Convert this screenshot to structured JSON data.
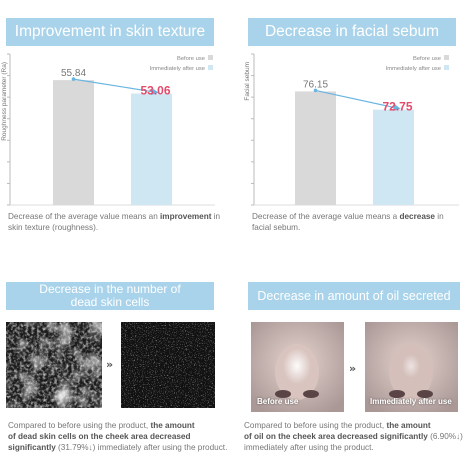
{
  "colors": {
    "banner": "#a9d3ea",
    "before_bar": "#d9d9d9",
    "after_bar": "#cfe6f3",
    "highlight": "#e24b6b",
    "arrow": "#69b5e2"
  },
  "chart_data": [
    {
      "type": "bar",
      "title": "Improvement in skin texture",
      "ylabel": "Roughness parameter (Ra)",
      "categories": [
        "Before use",
        "Immediately after use"
      ],
      "values": [
        55.84,
        53.06
      ],
      "value_labels": [
        "55.84",
        "53.06"
      ],
      "legend": [
        "Before use",
        "Immediately after use"
      ],
      "legend_position": "top-right",
      "ylim": [
        30,
        60
      ],
      "grid": false
    },
    {
      "type": "bar",
      "title": "Decrease in facial sebum",
      "ylabel": "Facial sebum",
      "categories": [
        "Before use",
        "Immediately after use"
      ],
      "values": [
        76.15,
        72.75
      ],
      "value_labels": [
        "76.15",
        "72.75"
      ],
      "legend": [
        "Before use",
        "Immediately after use"
      ],
      "legend_position": "top-right",
      "ylim": [
        55,
        82
      ],
      "grid": false
    }
  ],
  "captions": {
    "texture": {
      "pre": "Decrease of the average value means an ",
      "bold": "improvement",
      "post": " in skin texture (roughness)."
    },
    "sebum": {
      "pre": "Decrease of the average value means a ",
      "bold": "decrease",
      "post": " in facial sebum."
    }
  },
  "lower_left": {
    "title_line1": "Decrease in the number of",
    "title_line2": "dead skin cells",
    "arrows": "»",
    "caption_line1": "Compared to before using the product, ",
    "caption_bold1": "the amount",
    "caption_bold2": "of dead skin cells on the cheek area decreased",
    "caption_bold3": "significantly",
    "caption_pct": " (31.79%↓)",
    "caption_end": " immediately after using the product."
  },
  "lower_right": {
    "title": "Decrease in amount of oil secreted",
    "arrows": "»",
    "label_before": "Before use",
    "label_after": "Immediately after use",
    "caption_line1": "Compared to before using the product, ",
    "caption_bold1": "the amount",
    "caption_bold2": "of oil on the cheek area decreased significantly",
    "caption_pct": " (6.90%↓)",
    "caption_end": "immediately after using the product."
  }
}
